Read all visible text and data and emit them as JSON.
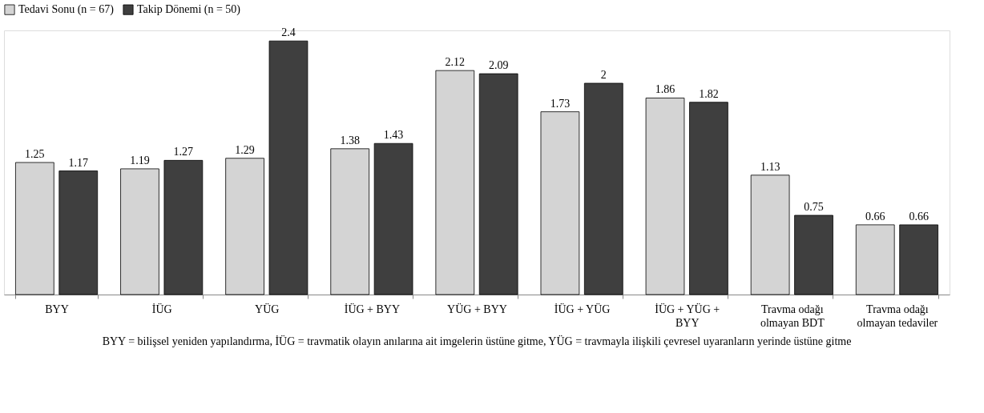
{
  "chart_data": {
    "type": "bar",
    "categories": [
      "BYY",
      "İÜG",
      "YÜG",
      "İÜG + BYY",
      "YÜG + BYY",
      "İÜG + YÜG",
      "İÜG + YÜG + BYY",
      "Travma odağı olmayan BDT",
      "Travma odağı olmayan tedaviler"
    ],
    "series": [
      {
        "name": "Tedavi Sonu (n = 67)",
        "color": "#d4d4d4",
        "values": [
          1.25,
          1.19,
          1.29,
          1.38,
          2.12,
          1.73,
          1.86,
          1.13,
          0.66
        ]
      },
      {
        "name": "Takip Dönemi (n = 50)",
        "color": "#3f3f3f",
        "values": [
          1.17,
          1.27,
          2.4,
          1.43,
          2.09,
          2,
          1.82,
          0.75,
          0.66
        ]
      }
    ],
    "ylim": [
      0,
      2.5
    ],
    "tick_labels": "x",
    "data_labels": true,
    "legend": "top",
    "grid": false,
    "annotations": [
      "BYY = bilişsel yeniden yapılandırma, İÜG = travmatik olayın anılarına ait imgelerin üstüne gitme, YÜG = travmayla ilişkili çevresel uyaranların yerinde üstüne gitme"
    ]
  }
}
